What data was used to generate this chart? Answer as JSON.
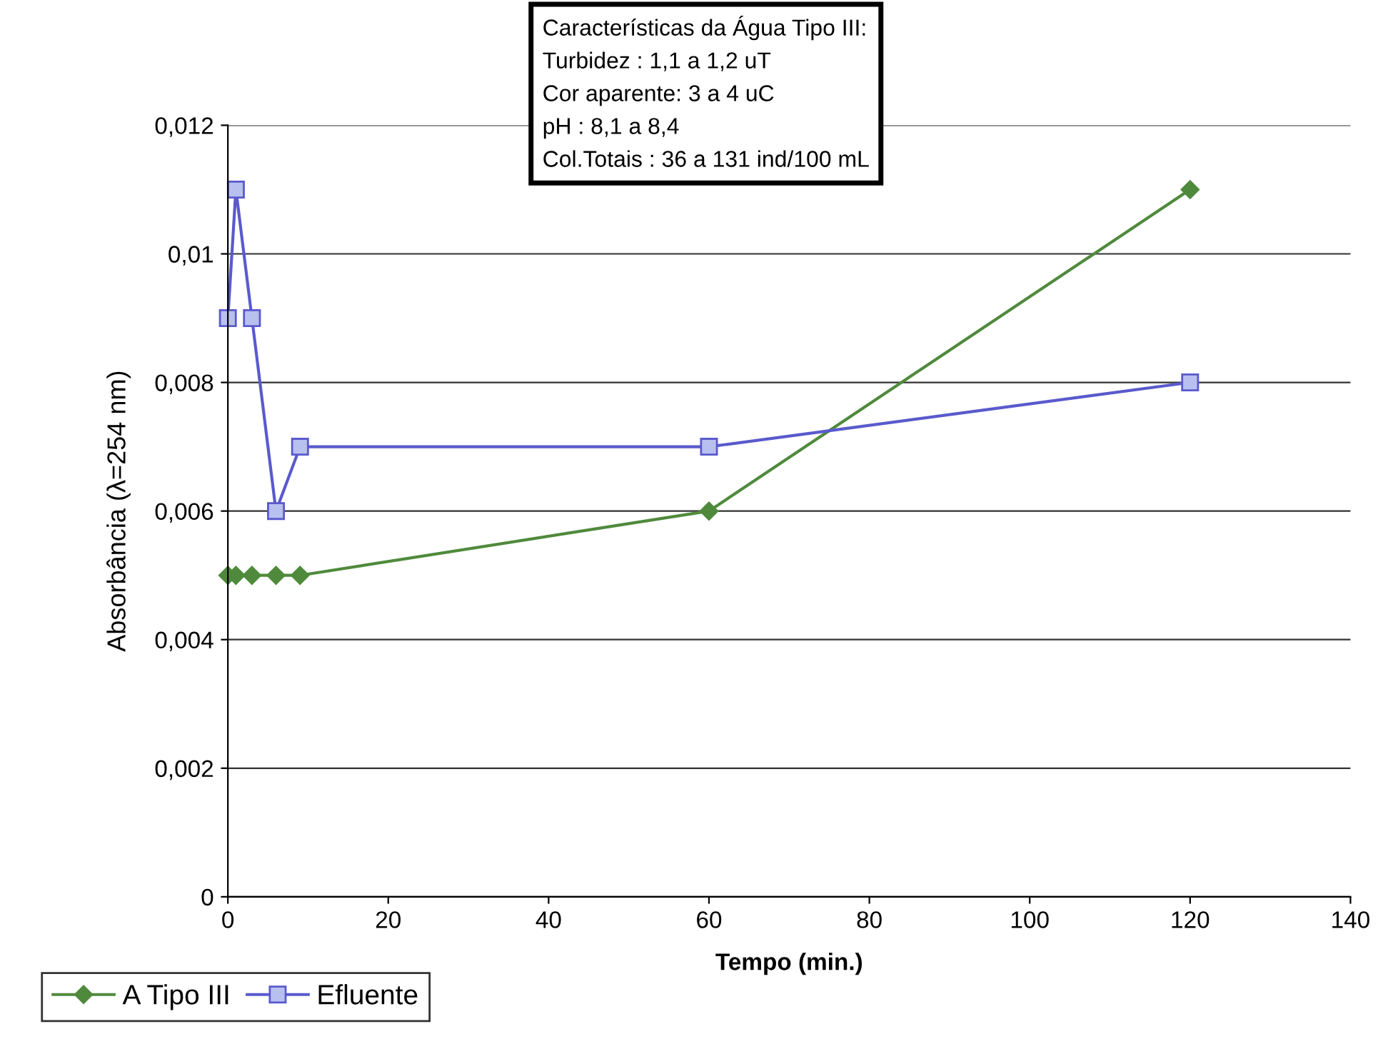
{
  "chart_data": {
    "type": "line",
    "xlabel": "Tempo (min.)",
    "ylabel": "Absorbância (λ=254 nm)",
    "x": [
      0,
      1,
      3,
      6,
      9,
      60,
      120
    ],
    "series": [
      {
        "name": "A Tipo III",
        "color": "#4f8a3c",
        "marker": "diamond",
        "values": [
          0.005,
          0.005,
          0.005,
          0.005,
          0.005,
          0.006,
          0.011
        ]
      },
      {
        "name": "Efluente",
        "color": "#5a5acd",
        "marker": "square",
        "values": [
          0.009,
          0.011,
          0.009,
          0.006,
          0.007,
          0.007,
          0.008
        ]
      }
    ],
    "xlim": [
      0,
      140
    ],
    "xticks": [
      0,
      20,
      40,
      60,
      80,
      100,
      120,
      140
    ],
    "ylim": [
      0,
      0.012
    ],
    "yticks": [
      {
        "value": 0,
        "label": "0"
      },
      {
        "value": 0.002,
        "label": "0,002"
      },
      {
        "value": 0.004,
        "label": "0,004"
      },
      {
        "value": 0.006,
        "label": "0,006"
      },
      {
        "value": 0.008,
        "label": "0,008"
      },
      {
        "value": 0.01,
        "label": "0,01"
      },
      {
        "value": 0.012,
        "label": "0,012"
      }
    ],
    "grid": "y",
    "legend": "bottom left",
    "annotations": [
      "Características da Água Tipo III:",
      "Turbidez : 1,1 a 1,2 uT",
      "Cor aparente: 3 a 4 uC",
      "pH : 8,1 a 8,4",
      "Col.Totais : 36 a 131 ind/100 mL"
    ]
  }
}
